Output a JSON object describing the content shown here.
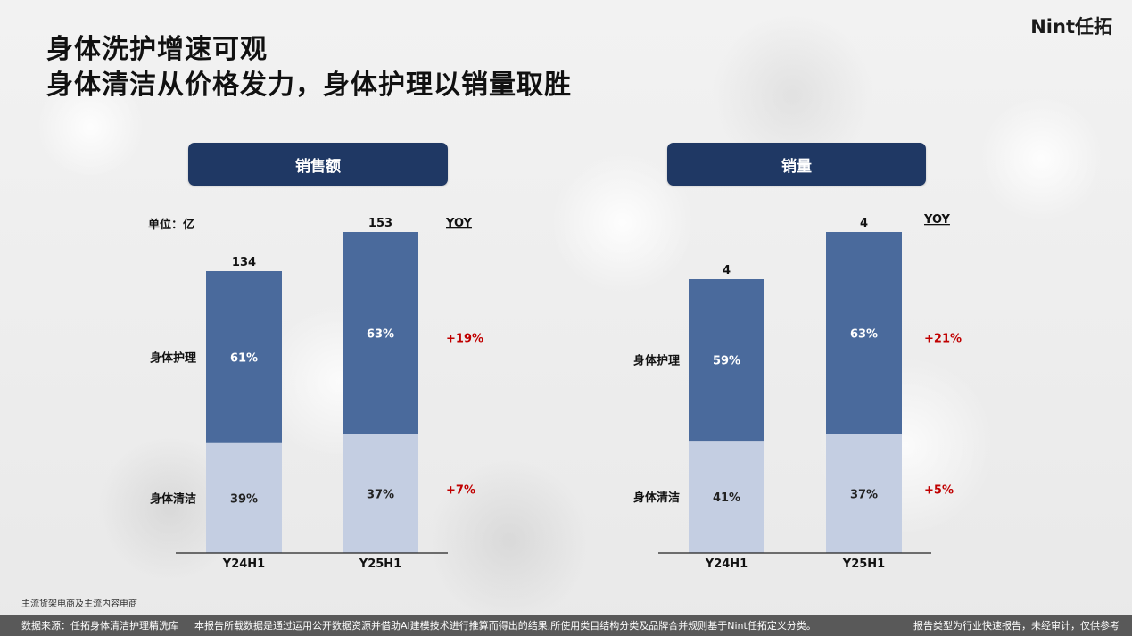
{
  "title_lines": [
    "身体洗护增速可观",
    "身体清洁从价格发力，身体护理以销量取胜"
  ],
  "logo": "Nint任拓",
  "colors": {
    "care": "#4a6a9c",
    "clean": "#c4cee2",
    "pill": "#1f3864",
    "yoy": "#c00000"
  },
  "chart_data": [
    {
      "type": "bar",
      "title": "销售额",
      "unit_label": "单位：亿",
      "categories": [
        "Y24H1",
        "Y25H1"
      ],
      "totals": [
        "134",
        "153"
      ],
      "series": [
        {
          "name": "身体清洁",
          "values": [
            39,
            37
          ],
          "labels": [
            "39%",
            "37%"
          ],
          "yoy": "+7%"
        },
        {
          "name": "身体护理",
          "values": [
            61,
            63
          ],
          "labels": [
            "61%",
            "63%"
          ],
          "yoy": "+19%"
        }
      ],
      "yoy_header": "YOY"
    },
    {
      "type": "bar",
      "title": "销量",
      "unit_label": "",
      "categories": [
        "Y24H1",
        "Y25H1"
      ],
      "totals": [
        "4",
        "4"
      ],
      "series": [
        {
          "name": "身体清洁",
          "values": [
            41,
            37
          ],
          "labels": [
            "41%",
            "37%"
          ],
          "yoy": "+5%"
        },
        {
          "name": "身体护理",
          "values": [
            59,
            63
          ],
          "labels": [
            "59%",
            "63%"
          ],
          "yoy": "+21%"
        }
      ],
      "yoy_header": "YOY"
    }
  ],
  "note": "主流货架电商及主流内容电商",
  "footer": {
    "source": "数据来源：任拓身体清洁护理精洗库",
    "disclaimer": "本报告所载数据是通过运用公开数据资源并借助AI建模技术进行推算而得出的结果,所使用类目结构分类及品牌合并规则基于Nint任拓定义分类。",
    "report_type": "报告类型为行业快速报告，未经审计，仅供参考"
  }
}
